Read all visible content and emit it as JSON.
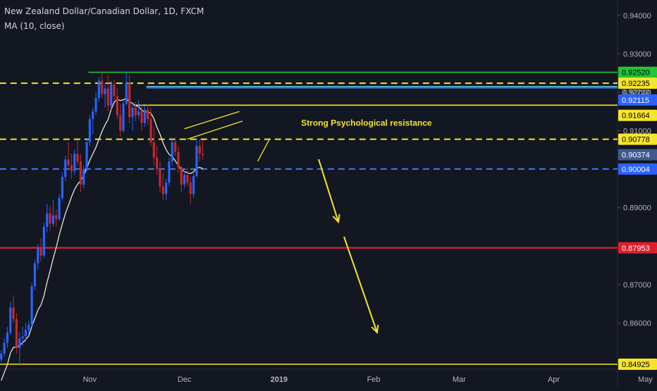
{
  "header": {
    "symbol_title": "New Zealand Dollar/Canadian Dollar, 1D, FXCM",
    "indicator": "MA (10, close)"
  },
  "colors": {
    "background": "#131722",
    "axis_text": "#b2b5be",
    "bull": "#2962ff",
    "bear": "#c62828",
    "ma": "#e8e8d0",
    "yellow": "#f5e52a",
    "green": "#22c533",
    "red": "#e01e2b",
    "blue_dash": "#3d7bf5",
    "cyan": "#4fc3d6"
  },
  "chart_data": {
    "type": "candlestick",
    "title": "New Zealand Dollar/Canadian Dollar, 1D, FXCM",
    "x_ticks": [
      "Nov",
      "Dec",
      "2019",
      "Feb",
      "Mar",
      "Apr",
      "May"
    ],
    "y_ticks": [
      "0.94000",
      "0.93000",
      "0.92000",
      "0.91000",
      "0.90000",
      "0.89000",
      "0.88000",
      "0.87000",
      "0.86000",
      "0.85000"
    ],
    "ylim": [
      0.8432,
      0.944
    ],
    "price_tags": [
      {
        "value": "0.92520",
        "color": "green"
      },
      {
        "value": "0.92235",
        "color": "yellow"
      },
      {
        "value": "0.92200",
        "color": "plain"
      },
      {
        "value": "0.92115",
        "color": "blue"
      },
      {
        "value": "0.91664",
        "color": "yellow"
      },
      {
        "value": "0.90778",
        "color": "yellow"
      },
      {
        "value": "0.90374",
        "color": "bluegrey"
      },
      {
        "value": "0.90004",
        "color": "blue"
      },
      {
        "value": "0.87953",
        "color": "red"
      },
      {
        "value": "0.84925",
        "color": "yellow"
      }
    ],
    "levels": [
      {
        "price": 0.9252,
        "style": "solid",
        "color": "green",
        "from_day": 29
      },
      {
        "price": 0.92235,
        "style": "dashed",
        "color": "yellow",
        "from_day": 0
      },
      {
        "price": 0.9215,
        "style": "solid",
        "color": "cyan",
        "from_day": 48
      },
      {
        "price": 0.92115,
        "style": "solid",
        "color": "blue_dash",
        "from_day": 48
      },
      {
        "price": 0.91664,
        "style": "solid",
        "color": "yellow",
        "from_day": 44
      },
      {
        "price": 0.90778,
        "style": "dashed",
        "color": "yellow",
        "from_day": 0
      },
      {
        "price": 0.90004,
        "style": "dashed",
        "color": "blue_dash",
        "from_day": 0
      },
      {
        "price": 0.87953,
        "style": "solid",
        "color": "red",
        "from_day": 0
      },
      {
        "price": 0.84925,
        "style": "solid",
        "color": "yellow",
        "from_day": 0
      }
    ],
    "annotations": [
      {
        "text": "Strong Psychological resistance",
        "price": 0.9109,
        "day": 89
      }
    ],
    "ma_period": 10,
    "ohlc": [
      [
        0.8505,
        0.8528,
        0.8498,
        0.852
      ],
      [
        0.852,
        0.856,
        0.8512,
        0.8548
      ],
      [
        0.8548,
        0.859,
        0.8535,
        0.8575
      ],
      [
        0.8575,
        0.8655,
        0.8568,
        0.864
      ],
      [
        0.864,
        0.8672,
        0.86,
        0.861
      ],
      [
        0.861,
        0.8625,
        0.852,
        0.8535
      ],
      [
        0.8535,
        0.8575,
        0.849,
        0.856
      ],
      [
        0.856,
        0.859,
        0.854,
        0.8565
      ],
      [
        0.8565,
        0.86,
        0.855,
        0.8582
      ],
      [
        0.8582,
        0.8605,
        0.857,
        0.8595
      ],
      [
        0.8595,
        0.8705,
        0.859,
        0.8695
      ],
      [
        0.8695,
        0.8765,
        0.8685,
        0.8755
      ],
      [
        0.8755,
        0.8805,
        0.874,
        0.8795
      ],
      [
        0.8795,
        0.882,
        0.876,
        0.8775
      ],
      [
        0.8775,
        0.886,
        0.877,
        0.885
      ],
      [
        0.885,
        0.891,
        0.8835,
        0.8885
      ],
      [
        0.8885,
        0.8905,
        0.884,
        0.8858
      ],
      [
        0.8858,
        0.892,
        0.885,
        0.888
      ],
      [
        0.888,
        0.8895,
        0.885,
        0.887
      ],
      [
        0.887,
        0.8935,
        0.8865,
        0.8925
      ],
      [
        0.8925,
        0.899,
        0.8918,
        0.898
      ],
      [
        0.898,
        0.9035,
        0.897,
        0.9025
      ],
      [
        0.9025,
        0.907,
        0.9005,
        0.901
      ],
      [
        0.901,
        0.904,
        0.8975,
        0.8995
      ],
      [
        0.8995,
        0.905,
        0.8985,
        0.904
      ],
      [
        0.904,
        0.9075,
        0.901,
        0.902
      ],
      [
        0.902,
        0.904,
        0.894,
        0.896
      ],
      [
        0.896,
        0.901,
        0.895,
        0.9
      ],
      [
        0.9,
        0.908,
        0.8995,
        0.907
      ],
      [
        0.907,
        0.914,
        0.906,
        0.913
      ],
      [
        0.913,
        0.916,
        0.909,
        0.915
      ],
      [
        0.915,
        0.92,
        0.914,
        0.9185
      ],
      [
        0.9185,
        0.924,
        0.9175,
        0.923
      ],
      [
        0.923,
        0.9252,
        0.9185,
        0.9195
      ],
      [
        0.9195,
        0.9225,
        0.916,
        0.921
      ],
      [
        0.921,
        0.9245,
        0.915,
        0.9165
      ],
      [
        0.9165,
        0.923,
        0.9155,
        0.922
      ],
      [
        0.922,
        0.9232,
        0.918,
        0.919
      ],
      [
        0.919,
        0.921,
        0.913,
        0.914
      ],
      [
        0.914,
        0.917,
        0.9085,
        0.91
      ],
      [
        0.91,
        0.918,
        0.9095,
        0.917
      ],
      [
        0.917,
        0.925,
        0.9165,
        0.9225
      ],
      [
        0.9225,
        0.9245,
        0.912,
        0.9135
      ],
      [
        0.9135,
        0.917,
        0.91,
        0.916
      ],
      [
        0.916,
        0.9175,
        0.9125,
        0.914
      ],
      [
        0.914,
        0.918,
        0.913,
        0.915
      ],
      [
        0.915,
        0.9168,
        0.91,
        0.912
      ],
      [
        0.912,
        0.9165,
        0.911,
        0.9155
      ],
      [
        0.9155,
        0.9168,
        0.9115,
        0.913
      ],
      [
        0.913,
        0.916,
        0.906,
        0.907
      ],
      [
        0.907,
        0.911,
        0.901,
        0.903
      ],
      [
        0.903,
        0.906,
        0.8985,
        0.9
      ],
      [
        0.9,
        0.902,
        0.894,
        0.8955
      ],
      [
        0.8955,
        0.899,
        0.892,
        0.8935
      ],
      [
        0.8935,
        0.8975,
        0.892,
        0.8965
      ],
      [
        0.8965,
        0.903,
        0.8955,
        0.902
      ],
      [
        0.902,
        0.9078,
        0.901,
        0.907
      ],
      [
        0.907,
        0.9082,
        0.9035,
        0.9045
      ],
      [
        0.9045,
        0.906,
        0.899,
        0.9005
      ],
      [
        0.9005,
        0.901,
        0.894,
        0.896
      ],
      [
        0.896,
        0.8995,
        0.895,
        0.8985
      ],
      [
        0.8985,
        0.9005,
        0.8955,
        0.8965
      ],
      [
        0.8965,
        0.898,
        0.891,
        0.8935
      ],
      [
        0.8935,
        0.899,
        0.8925,
        0.8982
      ],
      [
        0.8982,
        0.908,
        0.8978,
        0.906
      ],
      [
        0.906,
        0.9078,
        0.902,
        0.904
      ],
      [
        0.904,
        0.9075,
        0.9025,
        0.9037
      ]
    ]
  }
}
